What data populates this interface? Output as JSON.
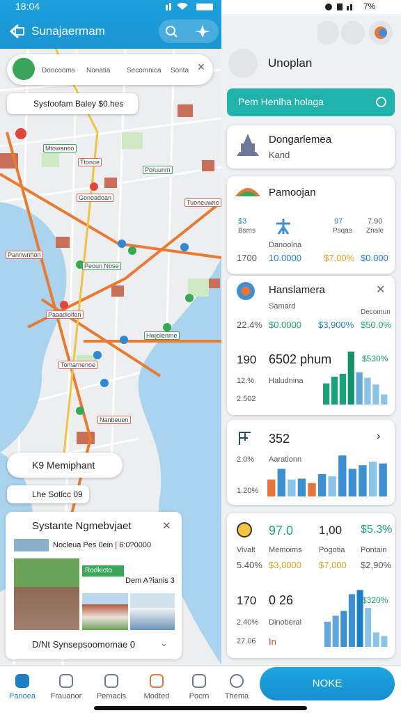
{
  "status": {
    "time": "18:04",
    "battery": "7%"
  },
  "left_header": {
    "title": "Sunajaermam"
  },
  "filters": [
    "Doocooms",
    "Nonatia",
    "Secomnica",
    "Sonta"
  ],
  "map_chip": "Sysfoofam Baley $0.hes",
  "map_labels": [
    "Mtowanoo",
    "Ttonoe",
    "Poruunm",
    "Gonoadoan",
    "Tuoneuwno",
    "Pannwnhon",
    "Peoun Nose",
    "Paaadiolfen",
    "Hwjolenme",
    "Tomarnenoe",
    "Nanbeuen"
  ],
  "place_chip": "K9 Memiphant",
  "place_chip_2": "Lhe Sotlcc 09",
  "place_card": {
    "title": "Systante Ngmebvjaet",
    "subtitle": "Nocleua  Pes 0ein | 6:0?0000",
    "tag": "Rodkicto",
    "note": "Dem A?ianis 3",
    "footer": "D/Nt Synsepsoomomae 0"
  },
  "nav": [
    "Panoea",
    "Frauanor",
    "Pemacls",
    "Modted",
    "Pocrn",
    "Thema"
  ],
  "action_button": "NOKE",
  "right_header": {
    "title": "Unoplan"
  },
  "banner": "Pem Henlha holaga",
  "card1": {
    "title": "Dongarlemea",
    "subtitle": "Kand"
  },
  "card2": {
    "title": "Pamoojan",
    "stats": [
      {
        "value": "$3",
        "label": "Bsms"
      },
      {
        "value": "97",
        "label": "Psqas"
      },
      {
        "value": "7.90",
        "label": "Znale"
      }
    ],
    "caption": "Danoolna",
    "row": [
      "1700",
      "10.0000",
      "$7.00%",
      "$0.000"
    ]
  },
  "card3": {
    "title": "Hanslamera",
    "subtitle": "Samard",
    "note": "Decomun",
    "row": [
      "22.4%",
      "$0.0000",
      "$3,900%",
      "$50.0%"
    ],
    "big_left": "190",
    "big": "6502 phum",
    "badge": "$530%",
    "left_2": "12.%",
    "label_2": "Haludnina",
    "left_3": "2.502",
    "bars": [
      {
        "value": 38,
        "color": "#1aa179"
      },
      {
        "value": 50,
        "color": "#1aa179"
      },
      {
        "value": 55,
        "color": "#1aa179"
      },
      {
        "value": 95,
        "color": "#12936a"
      },
      {
        "value": 58,
        "color": "#5fa8d9"
      },
      {
        "value": 48,
        "color": "#8cc3e8"
      },
      {
        "value": 36,
        "color": "#8cc3e8"
      },
      {
        "value": 18,
        "color": "#8cc3e8"
      }
    ]
  },
  "card4": {
    "title": "352",
    "left_1": "2.0%",
    "label": "Aarationn",
    "left_2": "1.20%",
    "bars": [
      {
        "value": 38,
        "color": "#e8743b"
      },
      {
        "value": 62,
        "color": "#3d8fd1"
      },
      {
        "value": 38,
        "color": "#8cc3e8"
      },
      {
        "value": 40,
        "color": "#3d8fd1"
      },
      {
        "value": 30,
        "color": "#e8743b"
      },
      {
        "value": 50,
        "color": "#3d8fd1"
      },
      {
        "value": 45,
        "color": "#8cc3e8"
      },
      {
        "value": 92,
        "color": "#3d8fd1"
      },
      {
        "value": 62,
        "color": "#3d8fd1"
      },
      {
        "value": 70,
        "color": "#3d8fd1"
      },
      {
        "value": 78,
        "color": "#8cc3e8"
      },
      {
        "value": 74,
        "color": "#3d8fd1"
      }
    ]
  },
  "card5": {
    "values": [
      "97.0",
      "1,00",
      "$5.3%"
    ],
    "labels": [
      "Vivalt",
      "Memoims",
      "Pogotia",
      "Pontain"
    ],
    "row": [
      "5.40%",
      "$3,0000",
      "$7,000",
      "$2,90%"
    ],
    "big_left": "170",
    "big": "0 26",
    "badge": "$320%",
    "left_2": "2.40%",
    "label_2": "Dinoberal",
    "left_3": "27.06",
    "label_3": "In",
    "bars": [
      {
        "value": 42,
        "color": "#5fa8d9"
      },
      {
        "value": 52,
        "color": "#5fa8d9"
      },
      {
        "value": 60,
        "color": "#3d8fd1"
      },
      {
        "value": 88,
        "color": "#3d8fd1"
      },
      {
        "value": 95,
        "color": "#1f7fc4"
      },
      {
        "value": 65,
        "color": "#8cc3e8"
      },
      {
        "value": 24,
        "color": "#8cc3e8"
      },
      {
        "value": 18,
        "color": "#8cc3e8"
      }
    ]
  }
}
